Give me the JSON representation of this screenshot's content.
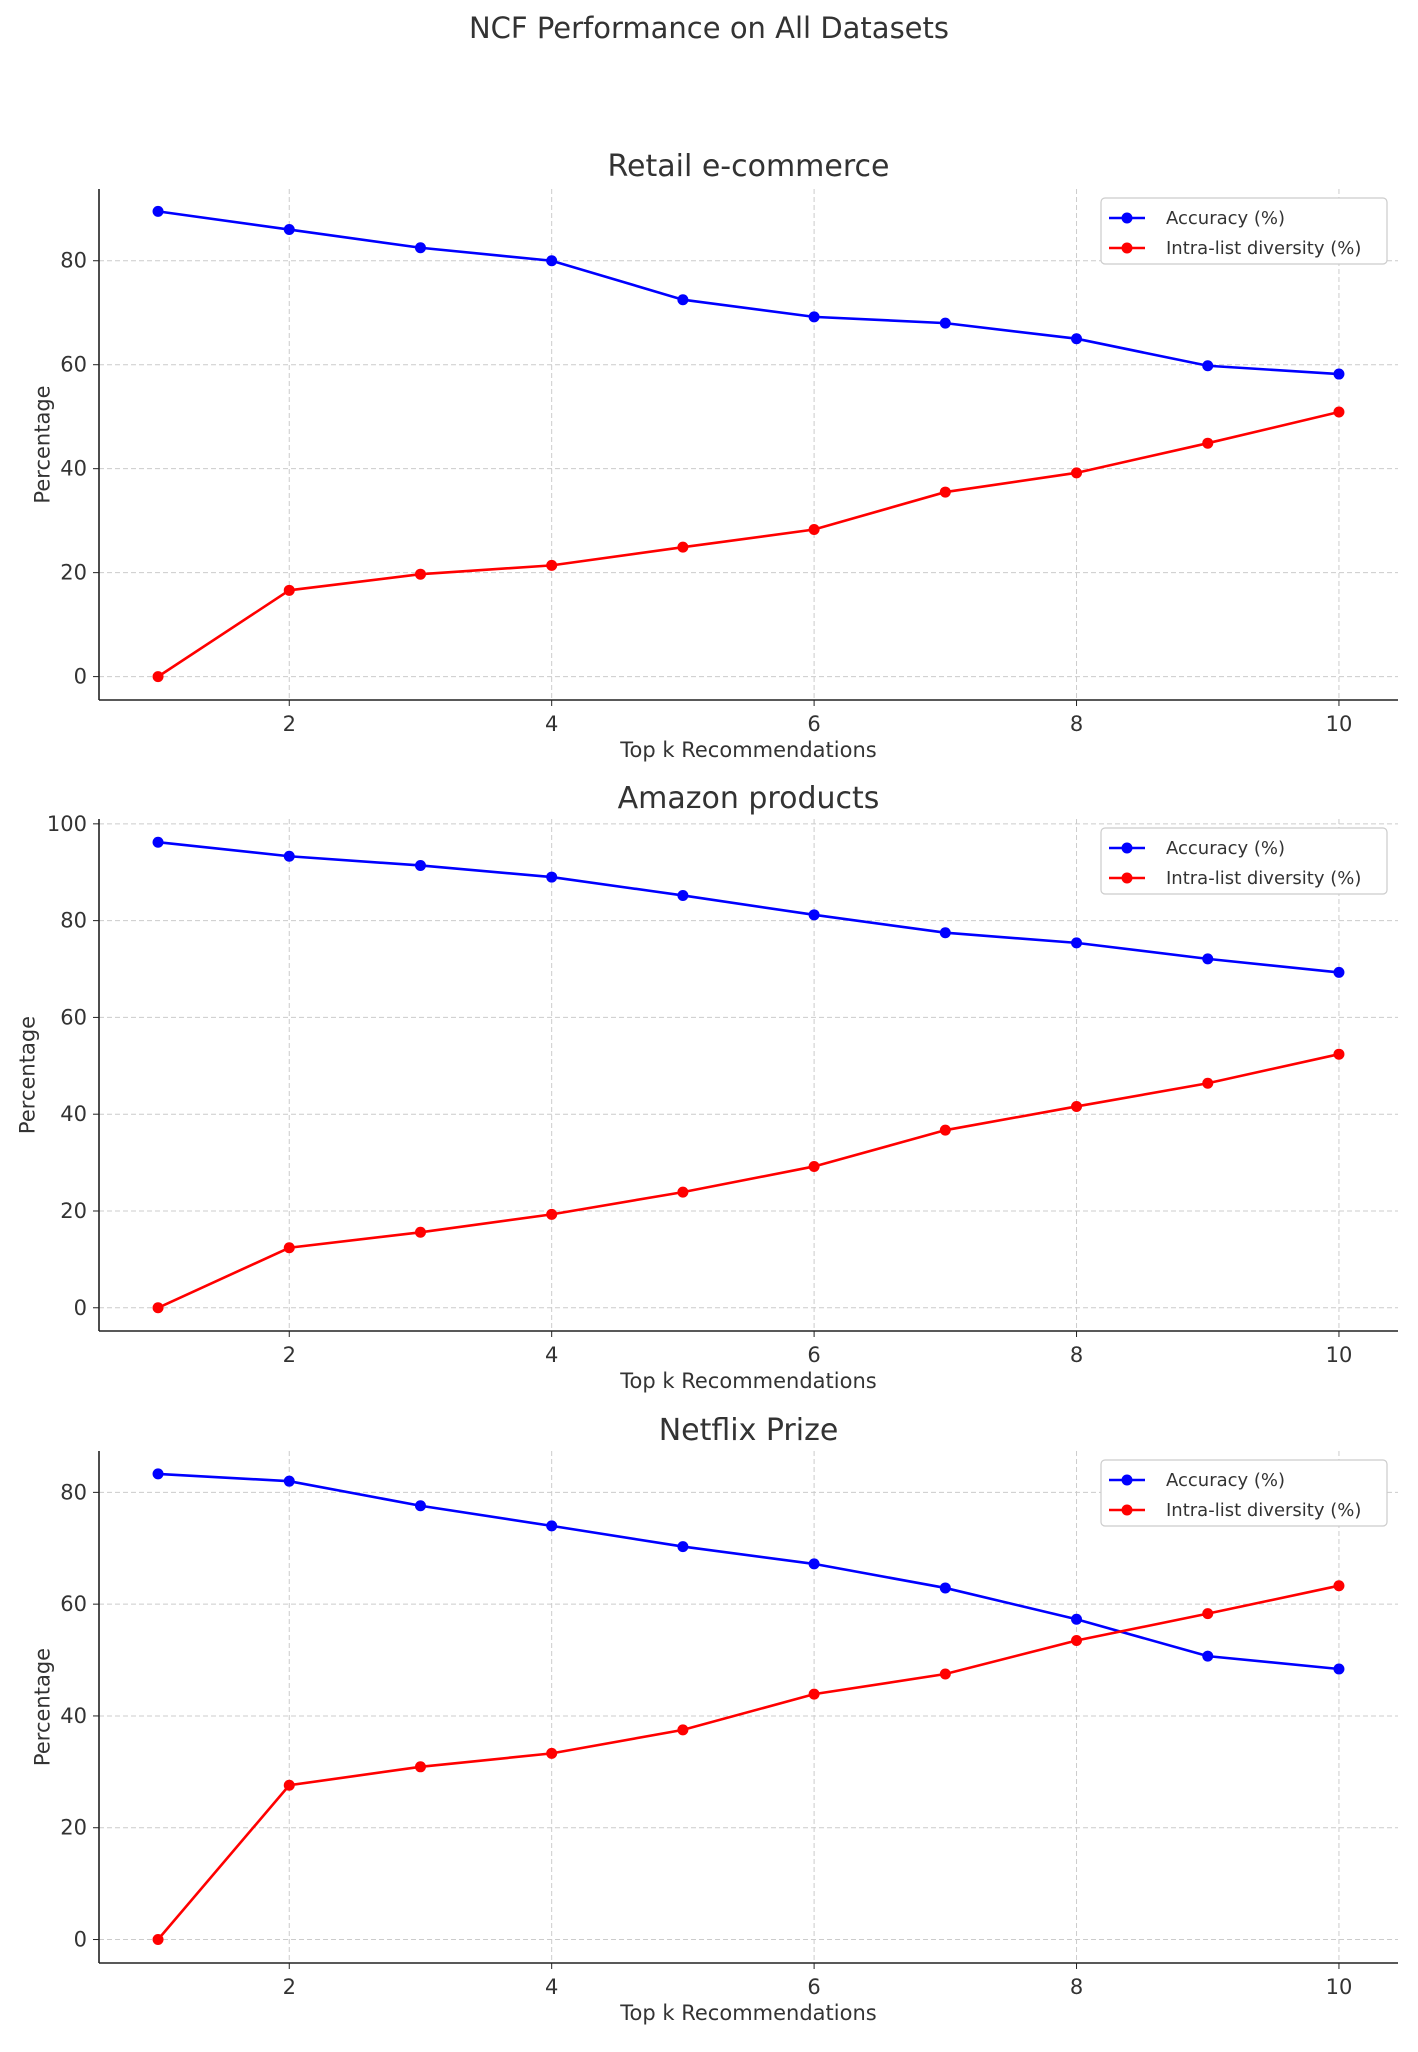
{
  "title": "NCF Performance on All Datasets",
  "colors": {
    "accuracy": "#0000ff",
    "diversity": "#ff0000",
    "grid": "#cccccc",
    "text": "#333333"
  },
  "chart_data": [
    {
      "type": "line",
      "title": "Retail e-commerce",
      "xlabel": "Top k Recommendations",
      "ylabel": "Percentage",
      "x": [
        1,
        2,
        3,
        4,
        5,
        6,
        7,
        8,
        9,
        10
      ],
      "xlim": [
        0.55,
        10.45
      ],
      "ylim": [
        -4.5,
        93.8
      ],
      "xticks": [
        2,
        4,
        6,
        8,
        10
      ],
      "yticks": [
        0,
        20,
        40,
        60,
        80
      ],
      "grid": true,
      "legend": "top-right",
      "series": [
        {
          "name": "Accuracy (%)",
          "color": "#0000ff",
          "values": [
            89.5,
            86,
            82.5,
            80,
            72.5,
            69.2,
            68,
            65,
            59.8,
            58.2
          ]
        },
        {
          "name": "Intra-list diversity (%)",
          "color": "#ff0000",
          "values": [
            0,
            16.6,
            19.7,
            21.4,
            24.9,
            28.3,
            35.5,
            39.2,
            44.9,
            50.9
          ]
        }
      ]
    },
    {
      "type": "line",
      "title": "Amazon products",
      "xlabel": "Top k Recommendations",
      "ylabel": "Percentage",
      "x": [
        1,
        2,
        3,
        4,
        5,
        6,
        7,
        8,
        9,
        10
      ],
      "xlim": [
        0.55,
        10.45
      ],
      "ylim": [
        -4.8,
        101
      ],
      "xticks": [
        2,
        4,
        6,
        8,
        10
      ],
      "yticks": [
        0,
        20,
        40,
        60,
        80,
        100
      ],
      "grid": true,
      "legend": "top-right",
      "series": [
        {
          "name": "Accuracy (%)",
          "color": "#0000ff",
          "values": [
            96.2,
            93.3,
            91.4,
            89,
            85.2,
            81.2,
            77.5,
            75.4,
            72.1,
            69.3
          ]
        },
        {
          "name": "Intra-list diversity (%)",
          "color": "#ff0000",
          "values": [
            0,
            12.4,
            15.6,
            19.3,
            23.9,
            29.2,
            36.7,
            41.6,
            46.4,
            52.4
          ]
        }
      ]
    },
    {
      "type": "line",
      "title": "Netflix Prize",
      "xlabel": "Top k Recommendations",
      "ylabel": "Percentage",
      "x": [
        1,
        2,
        3,
        4,
        5,
        6,
        7,
        8,
        9,
        10
      ],
      "xlim": [
        0.55,
        10.45
      ],
      "ylim": [
        -4.2,
        87.4
      ],
      "xticks": [
        2,
        4,
        6,
        8,
        10
      ],
      "yticks": [
        0,
        20,
        40,
        60,
        80
      ],
      "grid": true,
      "legend": "top-right",
      "series": [
        {
          "name": "Accuracy (%)",
          "color": "#0000ff",
          "values": [
            83.3,
            82,
            77.6,
            74,
            70.3,
            67.2,
            62.9,
            57.3,
            50.7,
            48.4
          ]
        },
        {
          "name": "Intra-list diversity (%)",
          "color": "#ff0000",
          "values": [
            0,
            27.6,
            30.9,
            33.3,
            37.5,
            43.9,
            47.5,
            53.5,
            58.3,
            63.3
          ]
        }
      ]
    }
  ]
}
